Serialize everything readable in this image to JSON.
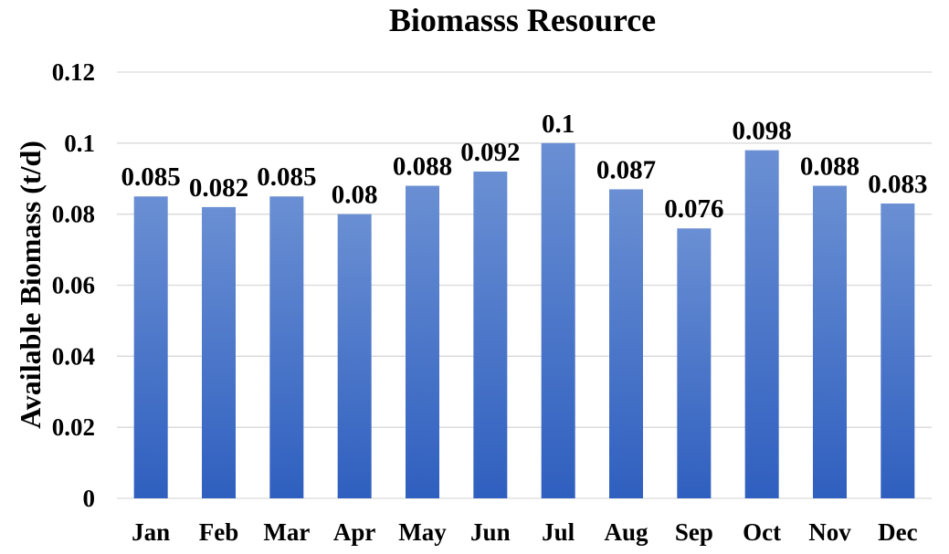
{
  "chart_data": {
    "type": "bar",
    "title": "Biomasss Resource",
    "xlabel": "",
    "ylabel": "Available Biomass (t/d)",
    "categories": [
      "Jan",
      "Feb",
      "Mar",
      "Apr",
      "May",
      "Jun",
      "Jul",
      "Aug",
      "Sep",
      "Oct",
      "Nov",
      "Dec"
    ],
    "values": [
      0.085,
      0.082,
      0.085,
      0.08,
      0.088,
      0.092,
      0.1,
      0.087,
      0.076,
      0.098,
      0.088,
      0.083
    ],
    "value_labels": [
      "0.085",
      "0.082",
      "0.085",
      "0.08",
      "0.088",
      "0.092",
      "0.1",
      "0.087",
      "0.076",
      "0.098",
      "0.088",
      "0.083"
    ],
    "ylim": [
      0,
      0.12
    ],
    "yticks": [
      0,
      0.02,
      0.04,
      0.06,
      0.08,
      0.1,
      0.12
    ],
    "ytick_labels": [
      "0",
      "0.02",
      "0.04",
      "0.06",
      "0.08",
      "0.1",
      "0.12"
    ],
    "grid": true,
    "legend": "none",
    "colors": {
      "bar_top": "#6a8fd3",
      "bar_bottom": "#2f5fbf",
      "grid": "#d9d9d9"
    }
  }
}
